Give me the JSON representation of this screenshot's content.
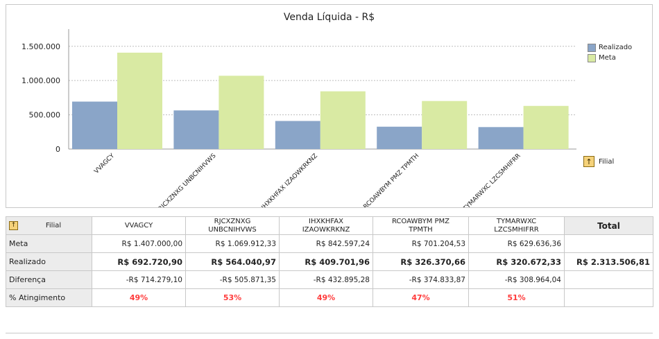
{
  "chart_data": {
    "type": "bar",
    "title": "Venda Líquida - R$",
    "categories": [
      "VVAGCY",
      "RJCXZNXG UNBCNIHVWS",
      "IHXKHFAX IZAOWKRKNZ",
      "RCOAWBYM PMZ TPMTH",
      "TYMARWXC LZCSMHIFRR"
    ],
    "series": [
      {
        "name": "Realizado",
        "color": "#8aa5c8",
        "values": [
          692720.9,
          564040.97,
          409701.96,
          326370.66,
          320672.33
        ]
      },
      {
        "name": "Meta",
        "color": "#d9eaa3",
        "values": [
          1407000.0,
          1069912.33,
          842597.24,
          701204.53,
          629636.36
        ]
      }
    ],
    "yticks": [
      "0",
      "500.000",
      "1.000.000",
      "1.500.000"
    ],
    "ylim": [
      0,
      1700000
    ],
    "grid": true,
    "legend_position": "top-right"
  },
  "filial_label": "Filial",
  "table": {
    "header_label": "Filial",
    "columns": [
      [
        "VVAGCY"
      ],
      [
        "RJCXZNXG",
        "UNBCNIHVWS"
      ],
      [
        "IHXKHFAX",
        "IZAOWKRKNZ"
      ],
      [
        "RCOAWBYM PMZ",
        "TPMTH"
      ],
      [
        "TYMARWXC",
        "LZCSMHIFRR"
      ]
    ],
    "total_label": "Total",
    "rows": [
      {
        "label": "Meta",
        "cells": [
          "R$ 1.407.000,00",
          "R$ 1.069.912,33",
          "R$ 842.597,24",
          "R$ 701.204,53",
          "R$ 629.636,36"
        ],
        "total": "",
        "style": "num"
      },
      {
        "label": "Realizado",
        "cells": [
          "R$ 692.720,90",
          "R$ 564.040,97",
          "R$ 409.701,96",
          "R$ 326.370,66",
          "R$ 320.672,33"
        ],
        "total": "R$ 2.313.506,81",
        "style": "bold"
      },
      {
        "label": "Diferença",
        "cells": [
          "-R$ 714.279,10",
          "-R$ 505.871,35",
          "-R$ 432.895,28",
          "-R$ 374.833,87",
          "-R$ 308.964,04"
        ],
        "total": "",
        "style": "num"
      },
      {
        "label": "% Atingimento",
        "cells": [
          "49%",
          "53%",
          "49%",
          "47%",
          "51%"
        ],
        "total": "",
        "style": "pct"
      }
    ]
  }
}
